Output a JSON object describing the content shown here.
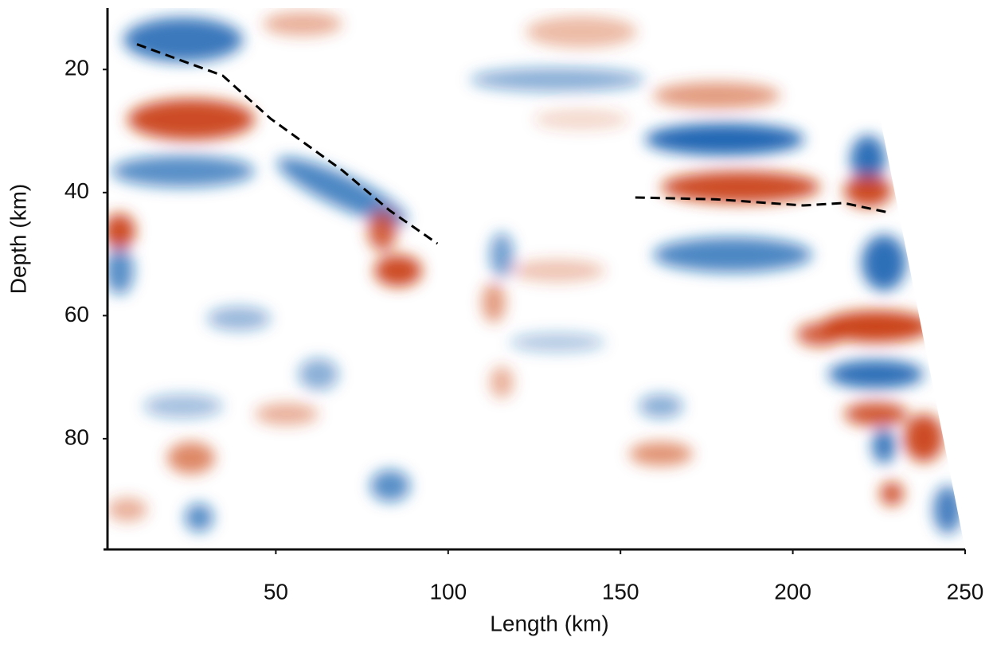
{
  "chart_data": {
    "type": "line",
    "xlabel": "Length (km)",
    "ylabel": "Depth (km)",
    "xlim": [
      0,
      250
    ],
    "ylim": [
      98,
      10
    ],
    "xticks": [
      50,
      100,
      150,
      200,
      250
    ],
    "yticks": [
      20,
      40,
      60,
      80
    ],
    "series": [
      {
        "color": "#000000",
        "dash": true,
        "x": [
          9.7,
          34.6,
          48.5,
          69.3,
          83,
          96.9
        ],
        "values": [
          15.9,
          21,
          28,
          36.4,
          42.9,
          48.3
        ]
      },
      {
        "color": "#000000",
        "dash": true,
        "x": [
          154.3,
          177.8,
          203,
          214.8,
          227.4
        ],
        "values": [
          40.8,
          41.1,
          42.1,
          41.7,
          43.2
        ]
      }
    ]
  }
}
